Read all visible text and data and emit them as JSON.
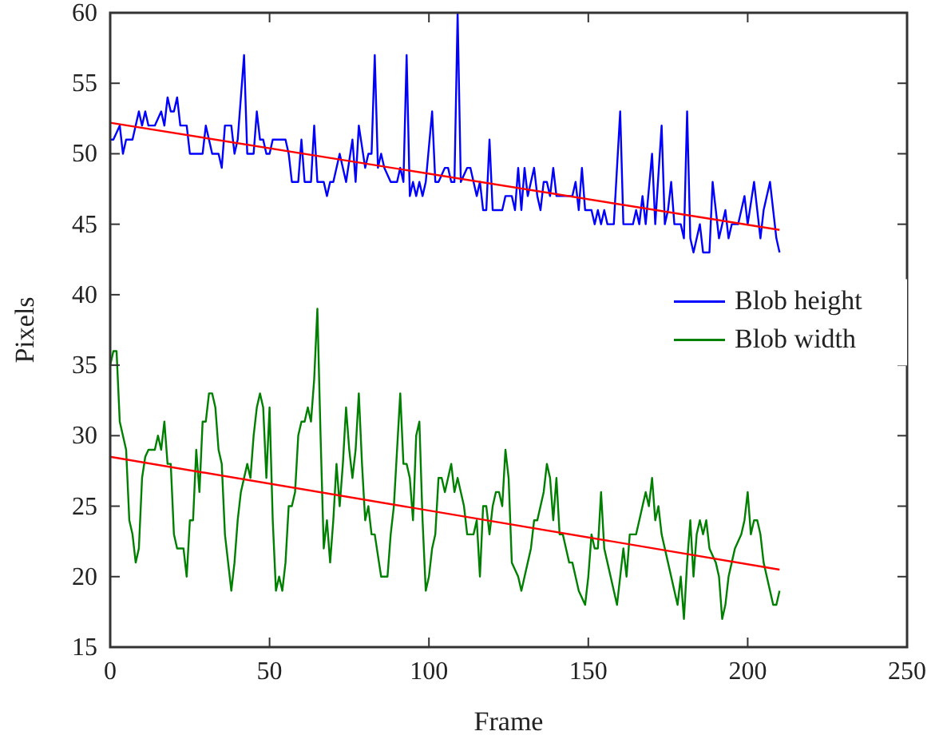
{
  "chart_data": {
    "type": "line",
    "xlabel": "Frame",
    "ylabel": "Pixels",
    "xlim": [
      0,
      250
    ],
    "xticks": [
      0,
      50,
      100,
      150,
      200,
      250
    ],
    "ylim": [
      15,
      60
    ],
    "yticks": [
      15,
      20,
      25,
      30,
      35,
      40,
      45,
      50,
      55,
      60
    ],
    "grid": false,
    "legend": "right",
    "series": [
      {
        "name": "Blob height",
        "color": "#0000ff",
        "x": [
          0,
          1,
          3,
          4,
          5,
          7,
          9,
          10,
          11,
          12,
          14,
          16,
          17,
          18,
          19,
          20,
          21,
          22,
          24,
          25,
          29,
          30,
          31,
          32,
          34,
          35,
          36,
          38,
          39,
          40,
          42,
          43,
          45,
          46,
          47,
          48,
          49,
          50,
          51,
          55,
          56,
          57,
          59,
          60,
          61,
          63,
          64,
          65,
          67,
          68,
          69,
          70,
          72,
          74,
          76,
          77,
          78,
          80,
          81,
          82,
          83,
          84,
          85,
          86,
          88,
          90,
          91,
          92,
          93,
          94,
          95,
          96,
          97,
          98,
          99,
          101,
          102,
          103,
          105,
          106,
          107,
          108,
          109,
          110,
          112,
          113,
          114,
          115,
          116,
          117,
          118,
          119,
          120,
          123,
          124,
          126,
          127,
          128,
          129,
          130,
          131,
          132,
          133,
          134,
          135,
          136,
          137,
          138,
          139,
          140,
          142,
          145,
          146,
          147,
          148,
          149,
          151,
          152,
          153,
          154,
          155,
          156,
          158,
          160,
          161,
          164,
          165,
          166,
          167,
          168,
          170,
          171,
          173,
          174,
          175,
          176,
          177,
          179,
          180,
          181,
          182,
          183,
          185,
          186,
          188,
          189,
          191,
          192,
          193,
          194,
          195,
          197,
          198,
          199,
          200,
          202,
          203,
          204,
          205,
          207,
          208,
          209,
          210
        ],
        "values": [
          51,
          51,
          52,
          50,
          51,
          51,
          53,
          52,
          53,
          52,
          52,
          53,
          52,
          54,
          53,
          53,
          54,
          52,
          52,
          50,
          50,
          52,
          51,
          50,
          50,
          49,
          52,
          52,
          50,
          51,
          57,
          50,
          50,
          53,
          51,
          51,
          50,
          50,
          51,
          51,
          50,
          48,
          48,
          51,
          48,
          48,
          52,
          48,
          48,
          47,
          48,
          48,
          50,
          48,
          51,
          48,
          52,
          49,
          50,
          50,
          57,
          49,
          50,
          49,
          48,
          48,
          49,
          48,
          57,
          47,
          48,
          47,
          48,
          47,
          48,
          53,
          48,
          48,
          49,
          49,
          48,
          48,
          60,
          48,
          49,
          49,
          48,
          47,
          48,
          46,
          46,
          51,
          46,
          46,
          47,
          47,
          46,
          49,
          46,
          49,
          47,
          48,
          49,
          47,
          46,
          48,
          48,
          47,
          49,
          47,
          47,
          47,
          48,
          46,
          49,
          46,
          46,
          45,
          46,
          45,
          46,
          45,
          45,
          53,
          45,
          45,
          46,
          45,
          47,
          45,
          50,
          45,
          52,
          45,
          46,
          48,
          45,
          45,
          44,
          53,
          44,
          43,
          45,
          43,
          43,
          48,
          44,
          45,
          46,
          44,
          45,
          45,
          46,
          47,
          45,
          48,
          46,
          44,
          46,
          48,
          46,
          44,
          43
        ]
      },
      {
        "name": "Blob width",
        "color": "#008000",
        "x": [
          0,
          1,
          2,
          3,
          5,
          6,
          7,
          8,
          9,
          10,
          11,
          12,
          14,
          15,
          16,
          17,
          18,
          19,
          20,
          21,
          23,
          24,
          25,
          26,
          27,
          28,
          29,
          30,
          31,
          32,
          33,
          34,
          35,
          36,
          37,
          38,
          39,
          40,
          41,
          43,
          44,
          45,
          46,
          47,
          48,
          49,
          50,
          51,
          52,
          53,
          54,
          55,
          56,
          57,
          58,
          59,
          60,
          61,
          62,
          63,
          64,
          65,
          66,
          67,
          68,
          69,
          70,
          71,
          72,
          73,
          74,
          75,
          76,
          77,
          78,
          79,
          80,
          81,
          82,
          83,
          84,
          85,
          87,
          88,
          89,
          91,
          92,
          93,
          94,
          95,
          96,
          97,
          98,
          99,
          100,
          101,
          102,
          103,
          104,
          105,
          106,
          107,
          108,
          109,
          110,
          111,
          112,
          114,
          115,
          116,
          117,
          118,
          119,
          120,
          121,
          122,
          123,
          124,
          125,
          126,
          128,
          129,
          130,
          131,
          132,
          133,
          134,
          136,
          137,
          138,
          139,
          140,
          141,
          142,
          144,
          145,
          146,
          147,
          149,
          150,
          151,
          152,
          153,
          154,
          155,
          156,
          157,
          159,
          160,
          161,
          162,
          163,
          165,
          166,
          167,
          168,
          169,
          170,
          171,
          172,
          173,
          175,
          176,
          177,
          178,
          179,
          180,
          181,
          182,
          183,
          184,
          185,
          186,
          187,
          188,
          190,
          191,
          192,
          193,
          194,
          195,
          196,
          198,
          199,
          200,
          201,
          202,
          203,
          204,
          205,
          206,
          208,
          209,
          210
        ],
        "values": [
          35,
          36,
          36,
          31,
          29,
          24,
          23,
          21,
          22,
          27,
          28.5,
          29,
          29,
          30,
          29,
          31,
          28,
          28,
          23,
          22,
          22,
          20,
          24,
          24,
          29,
          26,
          31,
          31,
          33,
          33,
          32,
          29,
          28,
          23,
          21,
          19,
          21,
          24,
          26,
          28,
          27,
          30,
          32,
          33,
          32,
          27,
          32,
          24,
          19,
          20,
          19,
          21,
          25,
          25,
          26,
          30,
          31,
          31,
          32,
          31,
          34,
          39,
          30,
          22,
          24,
          21,
          24,
          28,
          25,
          28,
          32,
          29,
          27,
          29,
          33,
          28,
          24,
          25,
          23,
          23,
          21.5,
          20,
          20,
          23,
          25,
          33,
          28,
          28,
          27,
          24,
          30,
          31,
          24,
          19,
          20,
          22,
          23,
          27,
          27,
          26,
          27,
          28,
          26,
          27,
          26,
          25,
          23,
          23,
          24,
          20,
          25,
          25,
          23,
          25,
          26,
          26,
          25,
          29,
          27,
          21,
          20,
          19,
          20,
          21,
          22,
          24,
          24,
          26,
          28,
          27,
          24,
          27,
          23,
          23,
          21,
          21,
          20,
          19,
          18,
          20,
          23,
          22,
          22,
          26,
          22,
          21,
          20,
          18,
          20,
          22,
          20,
          23,
          23,
          24,
          25,
          26,
          25,
          27,
          24,
          25,
          23,
          21,
          20,
          19,
          18,
          20,
          17,
          21,
          24,
          20,
          23,
          24,
          23,
          24,
          22,
          21,
          20,
          17,
          18,
          20,
          21,
          22,
          23,
          24,
          26,
          23,
          24,
          24,
          23,
          21,
          20,
          18,
          18,
          19
        ]
      },
      {
        "type": "line",
        "color": "#ff0000",
        "x": [
          0,
          210
        ],
        "values": [
          52.2,
          44.6
        ]
      },
      {
        "type": "line",
        "color": "#ff0000",
        "x": [
          0,
          210
        ],
        "values": [
          28.5,
          20.5
        ]
      }
    ]
  }
}
